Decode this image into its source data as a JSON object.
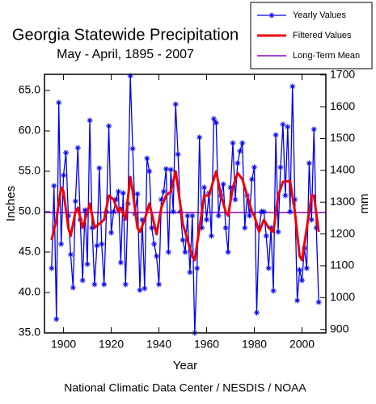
{
  "chart_data": {
    "type": "line",
    "title": "Georgia Statewide Precipitation",
    "subtitle": "May - April, 1895 - 2007",
    "x_label": "Year",
    "y_label": "Inches",
    "y2_label": "mm",
    "source": "National Climatic Data Center / NESDIS / NOAA",
    "x": [
      1895,
      1896,
      1897,
      1898,
      1899,
      1900,
      1901,
      1902,
      1903,
      1904,
      1905,
      1906,
      1907,
      1908,
      1909,
      1910,
      1911,
      1912,
      1913,
      1914,
      1915,
      1916,
      1917,
      1918,
      1919,
      1920,
      1921,
      1922,
      1923,
      1924,
      1925,
      1926,
      1927,
      1928,
      1929,
      1930,
      1931,
      1932,
      1933,
      1934,
      1935,
      1936,
      1937,
      1938,
      1939,
      1940,
      1941,
      1942,
      1943,
      1944,
      1945,
      1946,
      1947,
      1948,
      1949,
      1950,
      1951,
      1952,
      1953,
      1954,
      1955,
      1956,
      1957,
      1958,
      1959,
      1960,
      1961,
      1962,
      1963,
      1964,
      1965,
      1966,
      1967,
      1968,
      1969,
      1970,
      1971,
      1972,
      1973,
      1974,
      1975,
      1976,
      1977,
      1978,
      1979,
      1980,
      1981,
      1982,
      1983,
      1984,
      1985,
      1986,
      1987,
      1988,
      1989,
      1990,
      1991,
      1992,
      1993,
      1994,
      1995,
      1996,
      1997,
      1998,
      1999,
      2000,
      2001,
      2002,
      2003,
      2004,
      2005,
      2006,
      2007
    ],
    "series": [
      {
        "name": "Yearly Values",
        "color": "#0000ee",
        "values": [
          43.0,
          53.2,
          36.7,
          63.5,
          46.0,
          54.5,
          57.3,
          49.5,
          44.7,
          40.6,
          51.3,
          57.9,
          49.0,
          41.5,
          50.2,
          43.5,
          61.3,
          48.0,
          41.0,
          45.8,
          55.4,
          46.0,
          41.0,
          50.0,
          60.6,
          47.4,
          50.0,
          51.5,
          52.5,
          43.7,
          52.3,
          41.0,
          51.0,
          66.8,
          57.8,
          49.7,
          52.2,
          40.3,
          49.0,
          40.5,
          56.6,
          55.0,
          48.0,
          46.0,
          44.5,
          41.0,
          51.5,
          52.5,
          55.3,
          45.0,
          55.2,
          50.0,
          63.3,
          57.1,
          50.0,
          46.5,
          45.0,
          49.5,
          42.5,
          49.5,
          35.0,
          43.0,
          59.2,
          48.0,
          53.0,
          49.0,
          52.3,
          47.0,
          61.5,
          61.0,
          49.5,
          52.0,
          53.4,
          48.0,
          45.0,
          53.0,
          58.5,
          51.5,
          56.0,
          57.5,
          58.5,
          48.0,
          52.0,
          49.5,
          54.0,
          55.5,
          37.5,
          48.0,
          50.0,
          50.0,
          47.0,
          43.0,
          48.0,
          40.2,
          59.5,
          47.5,
          55.5,
          60.8,
          52.0,
          60.5,
          50.0,
          65.5,
          51.5,
          39.0,
          42.8,
          41.5,
          45.5,
          43.0,
          56.0,
          49.0,
          60.2,
          48.0,
          38.8
        ]
      },
      {
        "name": "Filtered Values",
        "color": "#ee0000",
        "x": [
          1895,
          1897,
          1899,
          1900,
          1902,
          1903,
          1905,
          1906,
          1908,
          1910,
          1911,
          1913,
          1915,
          1917,
          1919,
          1921,
          1923,
          1924,
          1926,
          1928,
          1929,
          1931,
          1932,
          1934,
          1936,
          1938,
          1939,
          1941,
          1943,
          1945,
          1947,
          1948,
          1950,
          1952,
          1954,
          1955,
          1957,
          1959,
          1961,
          1963,
          1964,
          1966,
          1968,
          1969,
          1971,
          1973,
          1975,
          1977,
          1979,
          1980,
          1982,
          1984,
          1986,
          1988,
          1990,
          1992,
          1995,
          1997,
          1999,
          2000,
          2002,
          2004,
          2005,
          2007
        ],
        "values": [
          46.5,
          49,
          53,
          52.5,
          48,
          47,
          50,
          50.5,
          48,
          50,
          51,
          48,
          48.5,
          49,
          52,
          51.5,
          50,
          50.5,
          49,
          54.3,
          52.5,
          48,
          47.5,
          49,
          51,
          48.5,
          47.2,
          50.5,
          52,
          52.5,
          55,
          53,
          48.5,
          46.5,
          44.5,
          44,
          48,
          52,
          52,
          54,
          55,
          52,
          50,
          49.5,
          53,
          54.8,
          54,
          52,
          50,
          49.5,
          47.5,
          49,
          48,
          47.5,
          52,
          53.7,
          53.8,
          50,
          44.5,
          44,
          48,
          52,
          52,
          47.5
        ]
      }
    ],
    "reference_line": {
      "name": "Long-Term Mean",
      "color": "#8800cc",
      "value": 49.9
    },
    "xlim": [
      1892,
      2010
    ],
    "xticks": [
      1900,
      1920,
      1940,
      1960,
      1980,
      2000
    ],
    "ylim": [
      35,
      67
    ],
    "yticks": [
      {
        "value": 35,
        "label": "35.0"
      },
      {
        "value": 40,
        "label": "40.0"
      },
      {
        "value": 45,
        "label": "45.0"
      },
      {
        "value": 50,
        "label": "50.0"
      },
      {
        "value": 55,
        "label": "55.0"
      },
      {
        "value": 60,
        "label": "60.0"
      },
      {
        "value": 65,
        "label": "65.0"
      }
    ],
    "y2lim": [
      889,
      1701.8
    ],
    "y2ticks": [
      900,
      1000,
      1100,
      1200,
      1300,
      1400,
      1500,
      1600,
      1700
    ],
    "legend": "top-right"
  }
}
